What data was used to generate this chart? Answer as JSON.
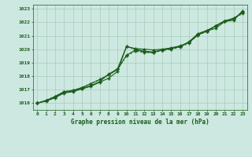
{
  "title": "Graphe pression niveau de la mer (hPa)",
  "background_color": "#cce8e0",
  "grid_color": "#aaccbb",
  "line_color": "#1a5c1a",
  "x_values": [
    0,
    1,
    2,
    3,
    4,
    5,
    6,
    7,
    8,
    9,
    10,
    11,
    12,
    13,
    14,
    15,
    16,
    17,
    18,
    19,
    20,
    21,
    22,
    23
  ],
  "line1": [
    1016.0,
    1016.15,
    1016.4,
    1016.75,
    1016.85,
    1017.05,
    1017.25,
    1017.55,
    1017.85,
    1018.35,
    1020.2,
    1020.05,
    1020.0,
    1019.95,
    1020.0,
    1020.1,
    1020.25,
    1020.5,
    1021.05,
    1021.35,
    1021.55,
    1022.05,
    1022.15,
    1022.85
  ],
  "line2": [
    1016.0,
    1016.2,
    1016.45,
    1016.8,
    1016.9,
    1017.1,
    1017.3,
    1017.6,
    1018.15,
    1018.55,
    1020.2,
    1020.0,
    1019.85,
    1019.8,
    1019.95,
    1020.05,
    1020.2,
    1020.55,
    1021.15,
    1021.4,
    1021.7,
    1022.1,
    1022.25,
    1022.75
  ],
  "line3": [
    1016.0,
    1016.2,
    1016.5,
    1016.85,
    1016.95,
    1017.15,
    1017.45,
    1017.75,
    1018.1,
    1018.5,
    1019.55,
    1019.95,
    1019.8,
    1019.75,
    1019.95,
    1020.05,
    1020.2,
    1020.5,
    1021.1,
    1021.35,
    1021.75,
    1022.1,
    1022.3,
    1022.7
  ],
  "line4": [
    1016.0,
    1016.2,
    1016.5,
    1016.85,
    1016.95,
    1017.15,
    1017.45,
    1017.75,
    1018.1,
    1018.5,
    1019.5,
    1019.85,
    1019.75,
    1019.75,
    1019.9,
    1020.0,
    1020.15,
    1020.45,
    1021.05,
    1021.3,
    1021.7,
    1022.05,
    1022.25,
    1022.65
  ],
  "ylim": [
    1015.5,
    1023.3
  ],
  "yticks": [
    1016,
    1017,
    1018,
    1019,
    1020,
    1021,
    1022,
    1023
  ],
  "xticks": [
    0,
    1,
    2,
    3,
    4,
    5,
    6,
    7,
    8,
    9,
    10,
    11,
    12,
    13,
    14,
    15,
    16,
    17,
    18,
    19,
    20,
    21,
    22,
    23
  ]
}
